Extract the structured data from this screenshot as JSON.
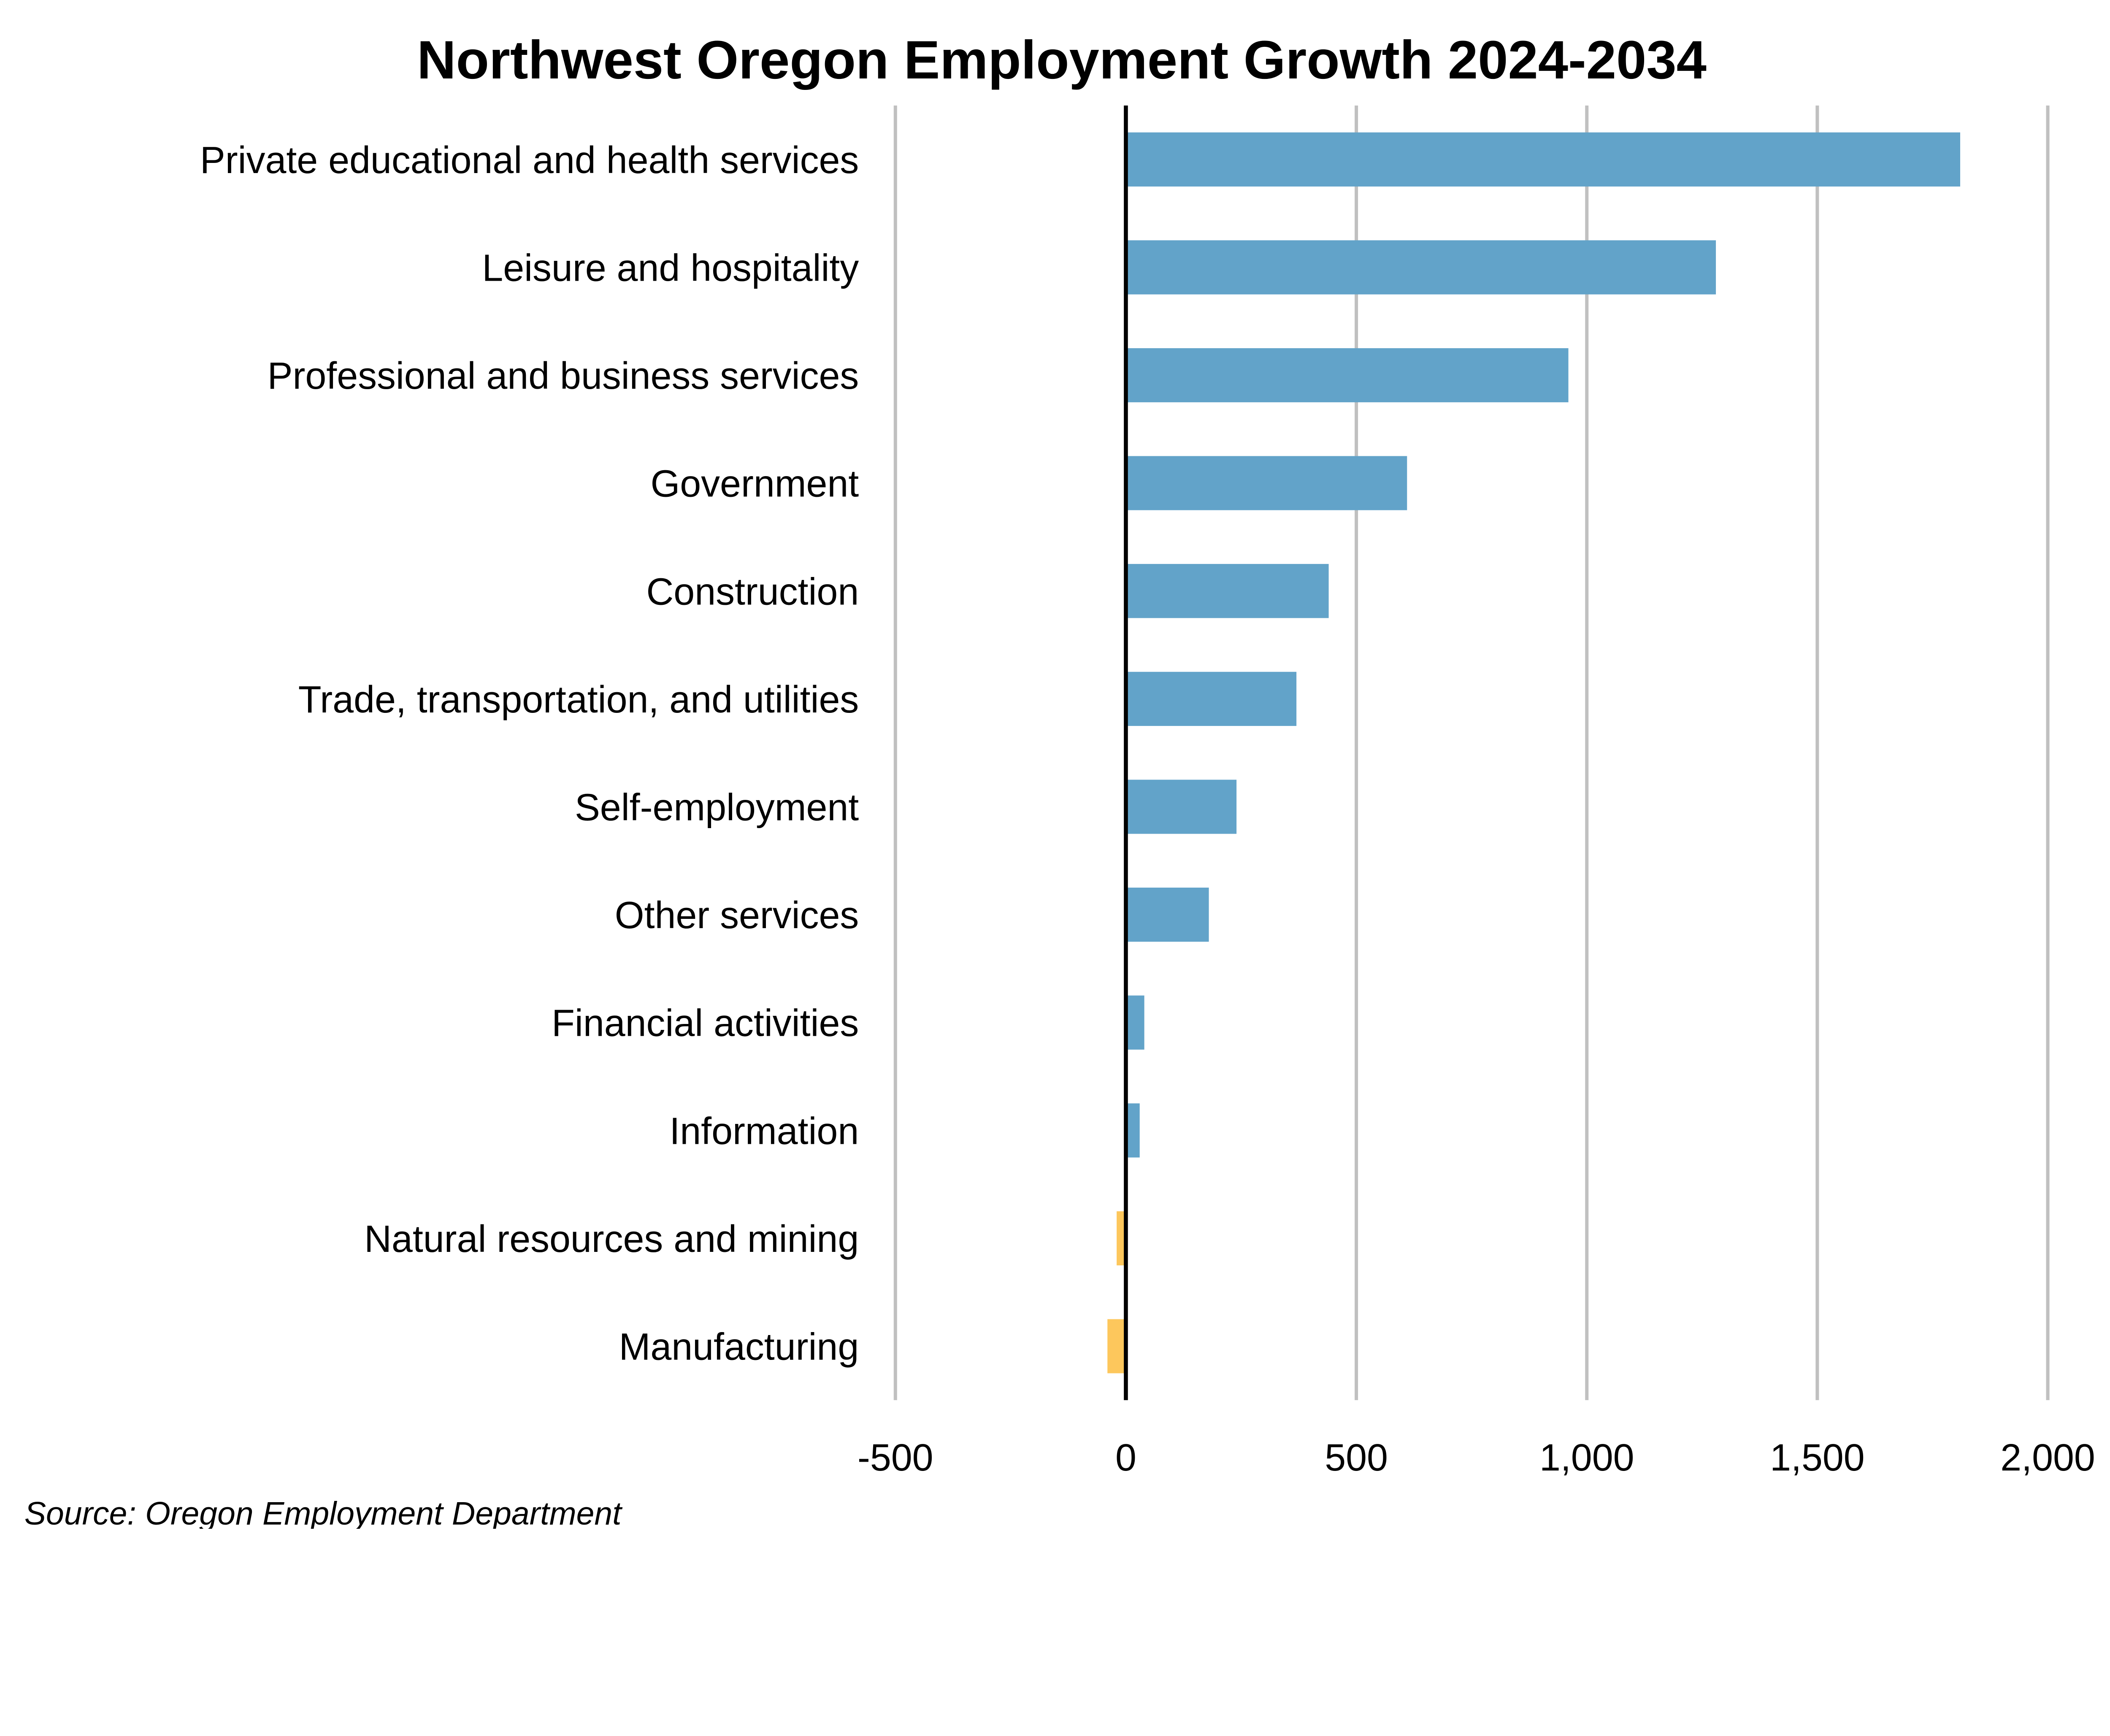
{
  "chart_data": {
    "type": "bar",
    "orientation": "horizontal",
    "title": "Northwest Oregon Employment Growth 2024-2034",
    "xlabel": "",
    "ylabel": "",
    "categories": [
      "Private educational and health services",
      "Leisure and hospitality",
      "Professional and business services",
      "Government",
      "Construction",
      "Trade, transportation, and utilities",
      "Self-employment",
      "Other services",
      "Financial activities",
      "Information",
      "Natural resources and mining",
      "Manufacturing"
    ],
    "values": [
      1810,
      1280,
      960,
      610,
      440,
      370,
      240,
      180,
      40,
      30,
      -20,
      -40
    ],
    "xlim": [
      -500,
      2000
    ],
    "x_ticks": [
      -500,
      0,
      500,
      1000,
      1500,
      2000
    ],
    "x_tick_labels": [
      "-500",
      "0",
      "500",
      "1,000",
      "1,500",
      "2,000"
    ],
    "grid": "vertical",
    "legend": "none",
    "colors": {
      "positive": "#62A3C9",
      "negative": "#FDC75C",
      "grid": "#C0C0C0",
      "zero_line": "#000000"
    },
    "source": "Source: Oregon Employment Department"
  }
}
